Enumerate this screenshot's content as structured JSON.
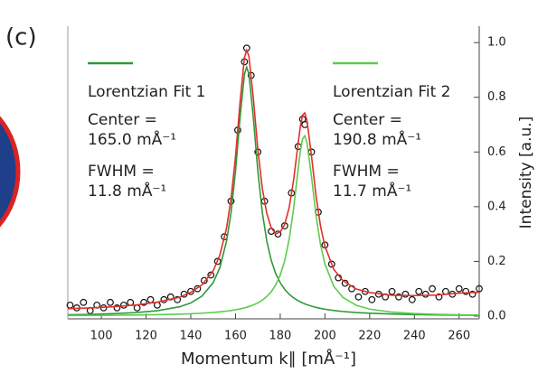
{
  "chart_data": {
    "type": "line",
    "panel_label": "(c)",
    "x_label": "Momentum k∥ [mÅ⁻¹]",
    "y_label": "Intensity [a.u.]",
    "xlim": [
      85,
      269
    ],
    "xticks": [
      100,
      120,
      140,
      160,
      180,
      200,
      220,
      240,
      260
    ],
    "ylim": [
      -0.01,
      1.06
    ],
    "yticks": [
      {
        "value": 0,
        "label": "0.0"
      },
      0.2,
      0.4,
      0.6,
      0.8,
      {
        "value": 1,
        "label": "1.0"
      }
    ],
    "series": [
      {
        "type": "scatter",
        "color": "#111111",
        "x": [
          86,
          89,
          92,
          95,
          98,
          101,
          104,
          107,
          110,
          113,
          116,
          119,
          122,
          125,
          128,
          131,
          134,
          137,
          140,
          143,
          146,
          149,
          152,
          155,
          158,
          161,
          164,
          165,
          167,
          170,
          173,
          176,
          179,
          182,
          185,
          188,
          190,
          191,
          194,
          197,
          200,
          203,
          206,
          209,
          212,
          215,
          218,
          221,
          224,
          227,
          230,
          233,
          236,
          239,
          242,
          245,
          248,
          251,
          254,
          257,
          260,
          263,
          266,
          269
        ],
        "values": [
          0.04,
          0.03,
          0.05,
          0.02,
          0.04,
          0.03,
          0.05,
          0.03,
          0.04,
          0.05,
          0.03,
          0.05,
          0.06,
          0.04,
          0.06,
          0.07,
          0.06,
          0.08,
          0.09,
          0.1,
          0.13,
          0.15,
          0.2,
          0.29,
          0.42,
          0.68,
          0.93,
          0.98,
          0.88,
          0.6,
          0.42,
          0.31,
          0.3,
          0.33,
          0.45,
          0.62,
          0.72,
          0.7,
          0.6,
          0.38,
          0.26,
          0.19,
          0.14,
          0.12,
          0.1,
          0.07,
          0.09,
          0.06,
          0.08,
          0.07,
          0.09,
          0.07,
          0.08,
          0.06,
          0.09,
          0.08,
          0.1,
          0.07,
          0.09,
          0.08,
          0.1,
          0.09,
          0.08,
          0.1
        ]
      },
      {
        "type": "line",
        "color": "#2e9a3a",
        "name": "Lorentzian Fit 1",
        "x": [
          85,
          95,
          105,
          115,
          125,
          135,
          140,
          145,
          150,
          153,
          156,
          158,
          160,
          162,
          164,
          165,
          166,
          168,
          170,
          172,
          174,
          176,
          178,
          180,
          182,
          184,
          186,
          188,
          189,
          190,
          191,
          192,
          194,
          196,
          198,
          200,
          204,
          208,
          214,
          220,
          230,
          240,
          250,
          260,
          269
        ],
        "values": [
          0.0049,
          0.0064,
          0.0087,
          0.0125,
          0.0194,
          0.0339,
          0.048,
          0.0729,
          0.122,
          0.177,
          0.274,
          0.378,
          0.53,
          0.723,
          0.885,
          0.91,
          0.885,
          0.723,
          0.53,
          0.378,
          0.274,
          0.203,
          0.155,
          0.122,
          0.0978,
          0.08,
          0.0666,
          0.0562,
          0.0519,
          0.048,
          0.0446,
          0.0415,
          0.0362,
          0.0318,
          0.0282,
          0.0251,
          0.0204,
          0.0168,
          0.013,
          0.0104,
          0.0074,
          0.0056,
          0.0044,
          0.0035,
          0.0029
        ]
      },
      {
        "type": "line",
        "color": "#5ccc4c",
        "name": "Lorentzian Fit 2",
        "x": [
          85,
          95,
          105,
          115,
          125,
          135,
          140,
          145,
          150,
          153,
          156,
          158,
          160,
          162,
          164,
          165,
          166,
          168,
          170,
          172,
          174,
          176,
          178,
          180,
          182,
          184,
          186,
          188,
          189,
          190,
          191,
          192,
          194,
          196,
          198,
          200,
          204,
          208,
          214,
          220,
          230,
          240,
          250,
          260,
          269
        ],
        "values": [
          0.002,
          0.0025,
          0.0031,
          0.0039,
          0.0052,
          0.0072,
          0.0086,
          0.0106,
          0.0133,
          0.0155,
          0.0181,
          0.0204,
          0.023,
          0.0262,
          0.03,
          0.0323,
          0.0348,
          0.0407,
          0.0484,
          0.0583,
          0.0714,
          0.0892,
          0.114,
          0.15,
          0.202,
          0.281,
          0.394,
          0.537,
          0.603,
          0.648,
          0.659,
          0.633,
          0.508,
          0.369,
          0.262,
          0.19,
          0.108,
          0.0685,
          0.0394,
          0.0255,
          0.0144,
          0.0092,
          0.0064,
          0.0047,
          0.0037
        ]
      },
      {
        "type": "line",
        "color": "#e0302a",
        "x": [
          85,
          95,
          105,
          115,
          125,
          135,
          140,
          145,
          150,
          153,
          156,
          158,
          160,
          162,
          164,
          165,
          166,
          168,
          170,
          172,
          174,
          176,
          178,
          180,
          182,
          184,
          186,
          188,
          189,
          190,
          191,
          192,
          194,
          196,
          198,
          200,
          204,
          208,
          214,
          220,
          230,
          240,
          250,
          260,
          269
        ],
        "values": [
          0.027,
          0.03,
          0.034,
          0.04,
          0.051,
          0.069,
          0.087,
          0.114,
          0.165,
          0.223,
          0.322,
          0.428,
          0.583,
          0.779,
          0.945,
          0.972,
          0.95,
          0.794,
          0.608,
          0.466,
          0.375,
          0.322,
          0.301,
          0.307,
          0.335,
          0.397,
          0.498,
          0.631,
          0.693,
          0.735,
          0.743,
          0.714,
          0.584,
          0.441,
          0.33,
          0.255,
          0.17,
          0.13,
          0.099,
          0.086,
          0.076,
          0.075,
          0.077,
          0.084,
          0.087
        ]
      }
    ],
    "annotations": [
      [
        "Center =",
        "165.0 mÅ⁻¹",
        "FWHM =",
        "11.8 mÅ⁻¹"
      ],
      [
        "Center =",
        "190.8 mÅ⁻¹",
        "FWHM =",
        "11.7 mÅ⁻¹"
      ]
    ]
  }
}
